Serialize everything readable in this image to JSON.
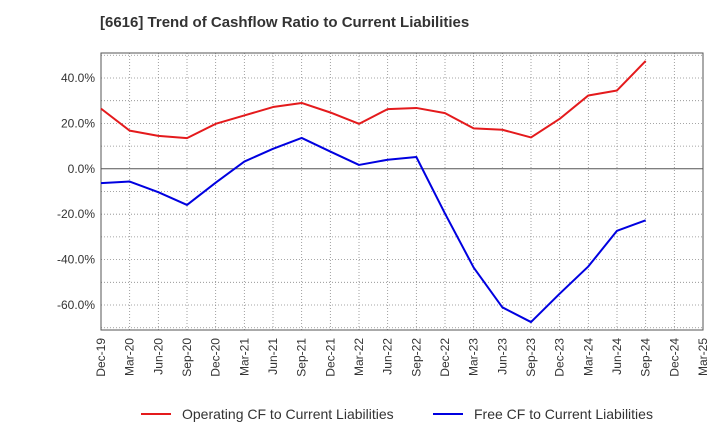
{
  "chart_data": {
    "type": "line",
    "title": "[6616]  Trend of Cashflow Ratio to Current Liabilities",
    "xlabel": "",
    "ylabel": "",
    "categories": [
      "Dec-19",
      "Mar-20",
      "Jun-20",
      "Sep-20",
      "Dec-20",
      "Mar-21",
      "Jun-21",
      "Sep-21",
      "Dec-21",
      "Mar-22",
      "Jun-22",
      "Sep-22",
      "Dec-22",
      "Mar-23",
      "Jun-23",
      "Sep-23",
      "Dec-23",
      "Mar-24",
      "Jun-24",
      "Sep-24",
      "Dec-24",
      "Mar-25"
    ],
    "ylim": [
      -71,
      51
    ],
    "yticks": [
      40,
      20,
      0,
      -20,
      -40,
      -60
    ],
    "ytick_labels": [
      "40.0%",
      "20.0%",
      "0.0%",
      "-20.0%",
      "-40.0%",
      "-60.0%"
    ],
    "grid": true,
    "legend_position": "bottom",
    "series": [
      {
        "name": "Operating CF to Current Liabilities",
        "color": "#e41a1c",
        "values": [
          26.5,
          16.8,
          14.5,
          13.5,
          19.8,
          23.5,
          27.2,
          29.0,
          24.8,
          19.8,
          26.3,
          26.8,
          24.5,
          17.8,
          17.2,
          13.8,
          22.0,
          32.3,
          34.5,
          47.5,
          null,
          null
        ]
      },
      {
        "name": "Free CF to Current Liabilities",
        "color": "#0000e0",
        "values": [
          -6.3,
          -5.6,
          -10.3,
          -15.9,
          -6.1,
          3.2,
          8.8,
          13.6,
          7.6,
          1.7,
          4.0,
          5.2,
          -19.7,
          -43.5,
          -61.0,
          -67.5,
          -55.0,
          -43.0,
          -27.3,
          -22.7,
          null,
          null
        ]
      }
    ]
  }
}
